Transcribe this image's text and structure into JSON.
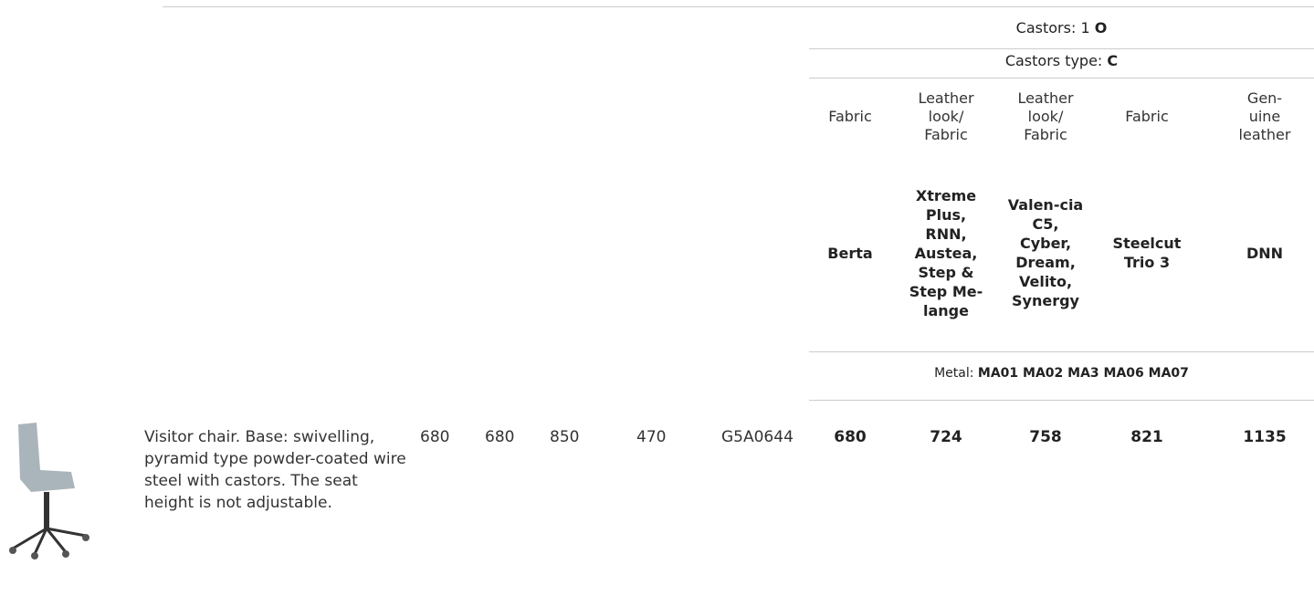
{
  "header": {
    "castors": {
      "label": "Castors: 1",
      "value": "O"
    },
    "castors_type": {
      "label": "Castors type:",
      "value": "C"
    },
    "materials": [
      "Fabric",
      "Leather look/ Fabric",
      "Leather look/ Fabric",
      "Fabric",
      "Gen-uine leather"
    ],
    "fabrics": [
      "Berta",
      "Xtreme Plus, RNN, Austea, Step & Step Me-lange",
      "Valen-cia C5, Cyber, Dream, Velito, Synergy",
      "Steelcut Trio 3",
      "DNN"
    ],
    "metal": {
      "label": "Metal:",
      "value": "MA01 MA02 MA3 MA06 MA07"
    }
  },
  "rows": [
    {
      "description": "Visitor chair. Base: swivelling, pyramid type powder-coated wire steel with castors. The seat height is not adjustable.",
      "dimensions": [
        680,
        680,
        850,
        470
      ],
      "code": "G5A0644",
      "prices": [
        680,
        724,
        758,
        821,
        1135
      ]
    }
  ]
}
